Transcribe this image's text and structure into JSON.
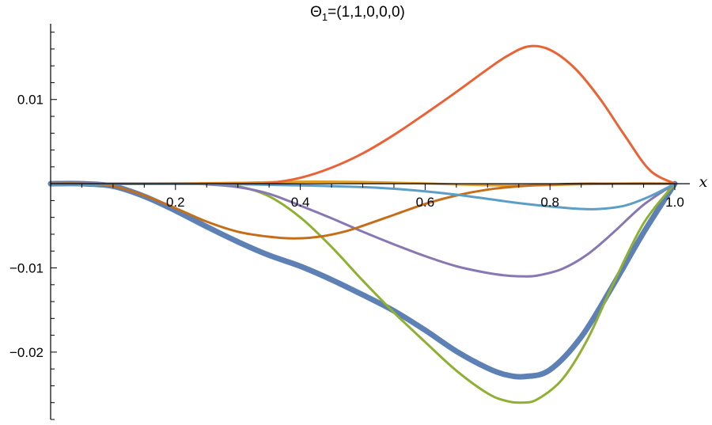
{
  "chart_data": {
    "type": "line",
    "title": "Θ",
    "title_subscript": "1",
    "title_suffix": "=(1,1,0,0,0)",
    "xlabel": "x",
    "ylabel": "",
    "xlim": [
      0,
      1.0
    ],
    "ylim": [
      -0.028,
      0.019
    ],
    "grid": false,
    "legend": "none",
    "x_ticks": [
      {
        "value": 0.2,
        "label": "0.2"
      },
      {
        "value": 0.4,
        "label": "0.4"
      },
      {
        "value": 0.6,
        "label": "0.6"
      },
      {
        "value": 0.8,
        "label": "0.8"
      },
      {
        "value": 1.0,
        "label": "1.0"
      }
    ],
    "y_ticks": [
      {
        "value": 0.01,
        "label": "0.01"
      },
      {
        "value": -0.01,
        "label": "−0.01"
      },
      {
        "value": -0.02,
        "label": "−0.02"
      }
    ],
    "series": [
      {
        "color": "#5E81B5",
        "width": 7,
        "x": [
          0,
          0.05,
          0.1,
          0.15,
          0.2,
          0.25,
          0.3,
          0.35,
          0.4,
          0.45,
          0.5,
          0.55,
          0.6,
          0.65,
          0.7,
          0.73,
          0.76,
          0.8,
          0.85,
          0.9,
          0.95,
          1.0
        ],
        "y": [
          0,
          0,
          -0.0003,
          -0.0015,
          -0.0032,
          -0.0051,
          -0.0069,
          -0.0085,
          -0.0098,
          -0.0114,
          -0.0132,
          -0.0151,
          -0.0174,
          -0.0199,
          -0.0219,
          -0.0227,
          -0.0229,
          -0.0221,
          -0.0182,
          -0.0122,
          -0.0058,
          0
        ]
      },
      {
        "color": "#E19C24",
        "width": 3,
        "x": [
          0,
          0.1,
          0.2,
          0.3,
          0.35,
          0.4,
          0.45,
          0.5,
          0.55,
          0.6,
          0.65,
          0.7,
          0.75,
          0.8,
          0.85,
          0.9,
          0.95,
          1.0
        ],
        "y": [
          0,
          0,
          3e-05,
          0.0001,
          0.00018,
          0.00024,
          0.00024,
          0.0002,
          0.00012,
          3e-05,
          -8e-05,
          -0.00018,
          -0.00022,
          -0.00016,
          -6e-05,
          0,
          3e-05,
          0
        ]
      },
      {
        "color": "#8FB032",
        "width": 3,
        "x": [
          0,
          0.25,
          0.3,
          0.35,
          0.4,
          0.45,
          0.5,
          0.55,
          0.6,
          0.65,
          0.7,
          0.73,
          0.755,
          0.78,
          0.82,
          0.86,
          0.9,
          0.95,
          1.0
        ],
        "y": [
          0,
          0,
          -0.0003,
          -0.0015,
          -0.004,
          -0.0075,
          -0.0115,
          -0.0153,
          -0.0188,
          -0.0222,
          -0.0249,
          -0.0258,
          -0.026,
          -0.0256,
          -0.0232,
          -0.0185,
          -0.0121,
          -0.0047,
          0
        ]
      },
      {
        "color": "#EB6235",
        "width": 3,
        "x": [
          0,
          0.3,
          0.35,
          0.4,
          0.45,
          0.5,
          0.55,
          0.6,
          0.65,
          0.7,
          0.73,
          0.765,
          0.8,
          0.84,
          0.88,
          0.92,
          0.96,
          1.0
        ],
        "y": [
          0,
          0,
          0.0001,
          0.0007,
          0.0019,
          0.0036,
          0.0058,
          0.0083,
          0.0109,
          0.0136,
          0.0151,
          0.0163,
          0.0159,
          0.0137,
          0.0101,
          0.0057,
          0.0016,
          0
        ]
      },
      {
        "color": "#8778B3",
        "width": 3,
        "x": [
          0,
          0.2,
          0.25,
          0.3,
          0.35,
          0.4,
          0.45,
          0.5,
          0.55,
          0.6,
          0.65,
          0.7,
          0.73,
          0.755,
          0.78,
          0.82,
          0.86,
          0.9,
          0.95,
          1.0
        ],
        "y": [
          0,
          0,
          -8e-05,
          -0.0004,
          -0.0012,
          -0.0026,
          -0.0041,
          -0.0057,
          -0.0072,
          -0.0086,
          -0.0098,
          -0.0106,
          -0.0109,
          -0.011,
          -0.0109,
          -0.0101,
          -0.0084,
          -0.0059,
          -0.0025,
          0
        ]
      },
      {
        "color": "#C56E1A",
        "width": 3,
        "x": [
          0,
          0.05,
          0.1,
          0.15,
          0.2,
          0.25,
          0.3,
          0.35,
          0.39,
          0.43,
          0.47,
          0.5,
          0.55,
          0.6,
          0.65,
          0.7,
          0.75,
          0.8,
          0.85,
          0.9,
          0.95,
          1.0
        ],
        "y": [
          0,
          0,
          -0.0003,
          -0.0014,
          -0.0029,
          -0.0045,
          -0.0057,
          -0.0063,
          -0.0065,
          -0.0063,
          -0.0057,
          -0.005,
          -0.0037,
          -0.0024,
          -0.0014,
          -0.0007,
          -0.0003,
          -0.0001,
          0,
          0,
          0,
          0
        ]
      },
      {
        "color": "#5D9EC7",
        "width": 3,
        "x": [
          0,
          0.05,
          0.1,
          0.2,
          0.3,
          0.4,
          0.5,
          0.55,
          0.6,
          0.65,
          0.7,
          0.75,
          0.8,
          0.85,
          0.88,
          0.92,
          0.96,
          1.0
        ],
        "y": [
          -8e-05,
          -0.0001,
          -5e-05,
          -2e-05,
          -6e-05,
          -0.0002,
          -0.0004,
          -0.0006,
          -0.0009,
          -0.0013,
          -0.0018,
          -0.0023,
          -0.0027,
          -0.003,
          -0.003,
          -0.0026,
          -0.0015,
          0
        ]
      }
    ]
  }
}
